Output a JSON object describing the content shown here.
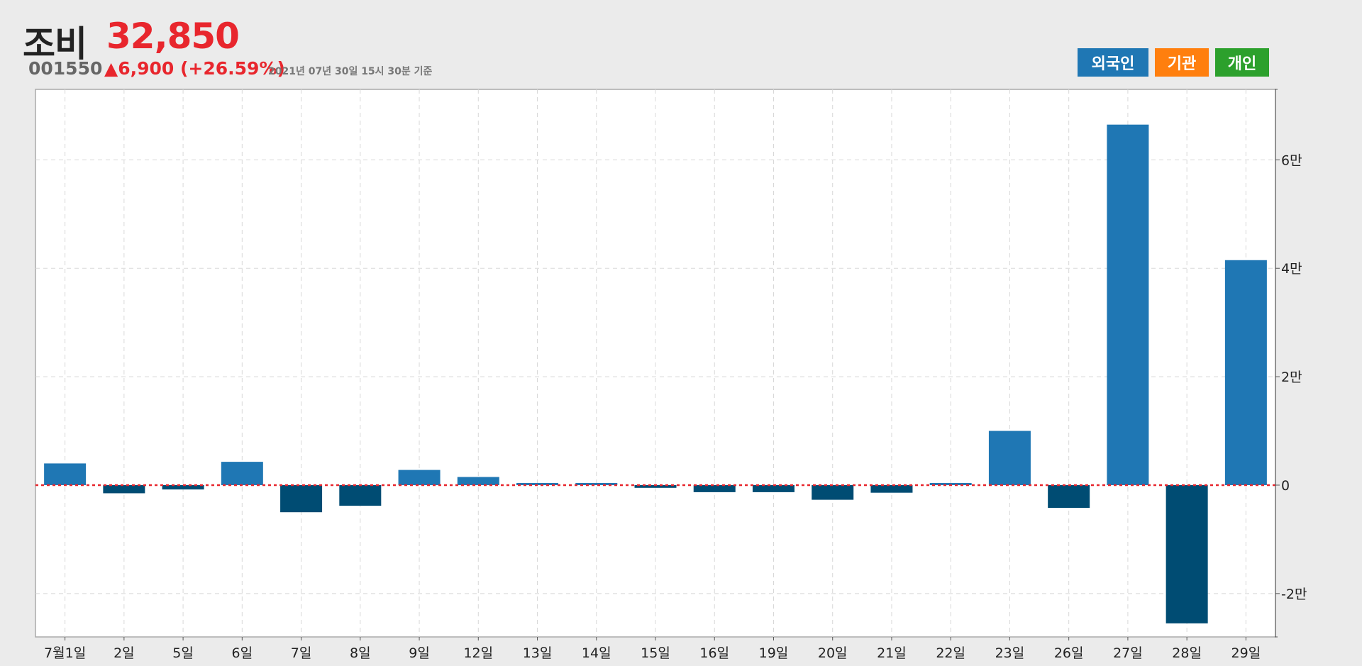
{
  "header": {
    "name": "조비",
    "price": "32,850",
    "code": "001550",
    "change": "▲6,900 (+26.59%)",
    "date": "2021년 07년 30일 15시 30분 기준"
  },
  "legend": [
    {
      "label": "외국인",
      "color": "#1f77b4"
    },
    {
      "label": "기관",
      "color": "#ff7f0e"
    },
    {
      "label": "개인",
      "color": "#2ca02c"
    }
  ],
  "colors": {
    "positive": "#1f77b4",
    "negative": "#004c73",
    "zero_line": "#e8262d"
  },
  "chart_data": {
    "type": "bar",
    "categories": [
      "7월1일",
      "2일",
      "5일",
      "6일",
      "7일",
      "8일",
      "9일",
      "12일",
      "13일",
      "14일",
      "15일",
      "16일",
      "19일",
      "20일",
      "21일",
      "22일",
      "23일",
      "26일",
      "27일",
      "28일",
      "29일"
    ],
    "series": [
      {
        "name": "외국인",
        "values": [
          4000,
          -1500,
          -800,
          4300,
          -5000,
          -3800,
          2800,
          1500,
          400,
          400,
          -500,
          -1300,
          -1300,
          -2700,
          -1400,
          400,
          10000,
          -4200,
          66500,
          -25500,
          41500
        ]
      }
    ],
    "ylim": [
      -28000,
      73000
    ],
    "yticks": [
      -20000,
      0,
      20000,
      40000,
      60000
    ],
    "ytick_labels": [
      "-2만",
      "0",
      "2만",
      "4만",
      "6만"
    ],
    "grid": true,
    "legend_position": "top-right"
  }
}
